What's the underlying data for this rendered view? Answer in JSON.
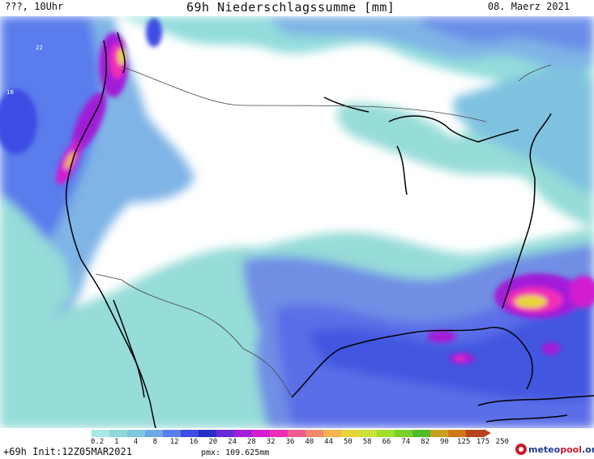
{
  "header": {
    "left": "???, 10Uhr",
    "center": "69h Niederschlagssumme [mm]",
    "right": "08. Maerz 2021"
  },
  "grid_labels": [
    "22",
    "16"
  ],
  "legend": {
    "labels": [
      "0.2",
      "1",
      "4",
      "8",
      "12",
      "16",
      "20",
      "24",
      "28",
      "32",
      "36",
      "40",
      "44",
      "50",
      "58",
      "66",
      "74",
      "82",
      "90",
      "125",
      "175",
      "250"
    ],
    "colors": [
      "#a8e8e4",
      "#8fd8dc",
      "#7fc8de",
      "#6fa8e6",
      "#5a7cec",
      "#3c4ee4",
      "#2a2cc8",
      "#6a2ad8",
      "#a21ed8",
      "#d21ed0",
      "#ee2eb8",
      "#f25a90",
      "#f4886c",
      "#f5b24e",
      "#e8d43a",
      "#c8e434",
      "#9ee02c",
      "#78d028",
      "#4cbc2a",
      "#c8a020",
      "#d27418",
      "#b8431e"
    ]
  },
  "footer": {
    "left": "+69h Init:12Z05MAR2021",
    "pmax": "pmx: 109.625mm",
    "brand_a": "meteo",
    "brand_b": "pool",
    "brand_c": ".org"
  }
}
